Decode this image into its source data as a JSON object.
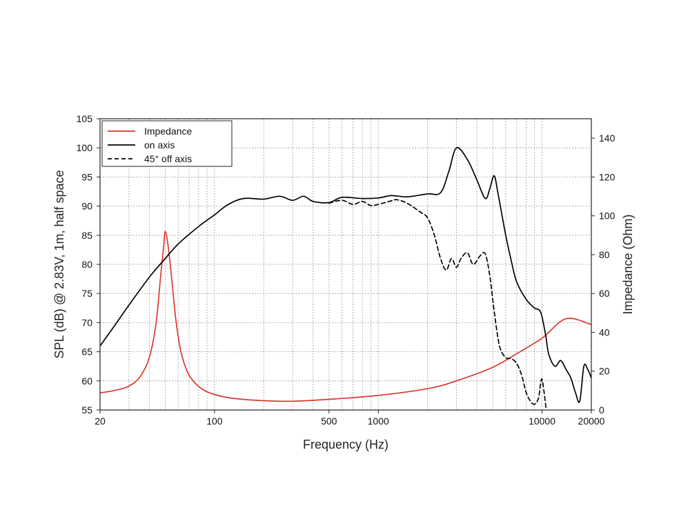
{
  "chart_data": {
    "type": "line",
    "x_scale": "log",
    "xlabel": "Frequency (Hz)",
    "ylabel": "SPL (dB) @ 2.83V, 1m, half space",
    "y2label": "Impedance (Ohm)",
    "xlim": [
      20,
      20000
    ],
    "ylim": [
      55,
      105
    ],
    "y2lim": [
      0,
      150
    ],
    "x_ticks": [
      20,
      100,
      500,
      1000,
      10000,
      20000
    ],
    "x_tick_labels": [
      "20",
      "100",
      "500",
      "1000",
      "10000",
      "20000"
    ],
    "y_ticks": [
      55,
      60,
      65,
      70,
      75,
      80,
      85,
      90,
      95,
      100,
      105
    ],
    "y2_ticks": [
      0,
      20,
      40,
      60,
      80,
      100,
      120,
      140
    ],
    "grid": true,
    "legend_position": "top-left",
    "series": [
      {
        "name": "Impedance",
        "axis": "right",
        "color": "#d9382e",
        "dash": "solid",
        "points": [
          [
            20,
            8.8
          ],
          [
            25,
            10.2
          ],
          [
            30,
            12.3
          ],
          [
            35,
            17
          ],
          [
            40,
            27
          ],
          [
            44,
            45
          ],
          [
            47,
            70
          ],
          [
            49,
            85
          ],
          [
            50,
            92
          ],
          [
            52,
            85
          ],
          [
            55,
            66
          ],
          [
            58,
            47
          ],
          [
            62,
            31
          ],
          [
            68,
            20
          ],
          [
            75,
            14.5
          ],
          [
            85,
            10.5
          ],
          [
            100,
            8
          ],
          [
            130,
            6
          ],
          [
            200,
            4.8
          ],
          [
            300,
            4.5
          ],
          [
            500,
            5.5
          ],
          [
            1000,
            7.5
          ],
          [
            2000,
            11
          ],
          [
            3000,
            15
          ],
          [
            5000,
            22
          ],
          [
            7000,
            29
          ],
          [
            10000,
            37
          ],
          [
            14000,
            47
          ],
          [
            20000,
            44
          ]
        ]
      },
      {
        "name": "on axis",
        "axis": "left",
        "color": "#000000",
        "dash": "solid",
        "points": [
          [
            20,
            66
          ],
          [
            25,
            69.8
          ],
          [
            30,
            73
          ],
          [
            40,
            77.8
          ],
          [
            50,
            81
          ],
          [
            60,
            83.5
          ],
          [
            80,
            86.5
          ],
          [
            100,
            88.5
          ],
          [
            120,
            90.2
          ],
          [
            150,
            91.3
          ],
          [
            200,
            91.2
          ],
          [
            250,
            91.7
          ],
          [
            300,
            91
          ],
          [
            350,
            91.7
          ],
          [
            400,
            90.8
          ],
          [
            500,
            90.6
          ],
          [
            600,
            91.5
          ],
          [
            800,
            91.3
          ],
          [
            1000,
            91.4
          ],
          [
            1200,
            91.8
          ],
          [
            1500,
            91.6
          ],
          [
            2000,
            92.1
          ],
          [
            2400,
            92.3
          ],
          [
            2700,
            96
          ],
          [
            3000,
            100
          ],
          [
            3500,
            98
          ],
          [
            4000,
            94.5
          ],
          [
            4500,
            91.3
          ],
          [
            4800,
            93
          ],
          [
            5100,
            95.2
          ],
          [
            5400,
            92
          ],
          [
            6000,
            85
          ],
          [
            6500,
            80.5
          ],
          [
            7000,
            77
          ],
          [
            8000,
            74
          ],
          [
            9000,
            72.5
          ],
          [
            9800,
            71.8
          ],
          [
            10500,
            68
          ],
          [
            11000,
            64.5
          ],
          [
            12000,
            62.5
          ],
          [
            13000,
            63.5
          ],
          [
            14000,
            62
          ],
          [
            15000,
            60.5
          ],
          [
            16000,
            58
          ],
          [
            17000,
            56.5
          ],
          [
            18000,
            62.5
          ],
          [
            19000,
            62
          ],
          [
            20000,
            60.5
          ]
        ]
      },
      {
        "name": "45° off axis",
        "axis": "left",
        "color": "#000000",
        "dash": "dashed",
        "points": [
          [
            500,
            90.5
          ],
          [
            600,
            91
          ],
          [
            700,
            90.3
          ],
          [
            800,
            90.8
          ],
          [
            900,
            90.1
          ],
          [
            1000,
            90.3
          ],
          [
            1100,
            90.6
          ],
          [
            1200,
            90.9
          ],
          [
            1300,
            91.1
          ],
          [
            1500,
            90.5
          ],
          [
            1800,
            89
          ],
          [
            2000,
            88
          ],
          [
            2200,
            85
          ],
          [
            2400,
            81
          ],
          [
            2600,
            79
          ],
          [
            2800,
            81
          ],
          [
            3000,
            79.5
          ],
          [
            3200,
            81
          ],
          [
            3500,
            82
          ],
          [
            3800,
            80
          ],
          [
            4200,
            81.5
          ],
          [
            4500,
            81.8
          ],
          [
            4800,
            78
          ],
          [
            5100,
            72
          ],
          [
            5500,
            66
          ],
          [
            6000,
            64
          ],
          [
            6500,
            63.8
          ],
          [
            7000,
            63
          ],
          [
            7500,
            61
          ],
          [
            8000,
            58
          ],
          [
            8500,
            56.5
          ],
          [
            9000,
            56
          ],
          [
            9500,
            57
          ],
          [
            9800,
            59.5
          ],
          [
            10000,
            60.3
          ],
          [
            10300,
            58
          ],
          [
            10600,
            55
          ]
        ]
      }
    ]
  }
}
